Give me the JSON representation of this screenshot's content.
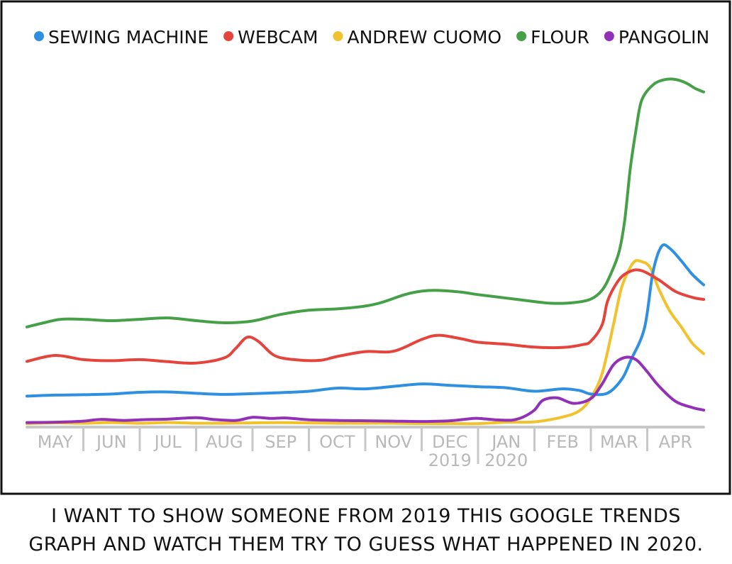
{
  "caption": {
    "line1": "I WANT TO SHOW SOMEONE FROM 2019 THIS GOOGLE TRENDS",
    "line2": "GRAPH AND WATCH THEM TRY TO GUESS WHAT HAPPENED IN 2020."
  },
  "chart_data": {
    "type": "line",
    "title": "",
    "xlabel": "",
    "ylabel": "",
    "x_months": [
      "MAY",
      "JUN",
      "JUL",
      "AUG",
      "SEP",
      "OCT",
      "NOV",
      "DEC",
      "JAN",
      "FEB",
      "MAR",
      "APR"
    ],
    "year_labels": [
      {
        "month": "DEC",
        "text": "2019"
      },
      {
        "month": "JAN",
        "text": "2020"
      }
    ],
    "xlim": [
      0,
      12
    ],
    "ylim": [
      0,
      100
    ],
    "grid": false,
    "legend_position": "top",
    "series": [
      {
        "name": "SEWING MACHINE",
        "color": "#2f8fe0",
        "points": [
          [
            0,
            8.5
          ],
          [
            0.5,
            8.8
          ],
          [
            1,
            8.9
          ],
          [
            1.5,
            9.1
          ],
          [
            2,
            9.6
          ],
          [
            2.5,
            9.7
          ],
          [
            3,
            9.3
          ],
          [
            3.5,
            9.0
          ],
          [
            4,
            9.2
          ],
          [
            4.5,
            9.5
          ],
          [
            5,
            9.9
          ],
          [
            5.5,
            10.8
          ],
          [
            6,
            10.6
          ],
          [
            6.5,
            11.3
          ],
          [
            7,
            12.0
          ],
          [
            7.5,
            11.6
          ],
          [
            8,
            11.2
          ],
          [
            8.5,
            10.9
          ],
          [
            9,
            9.9
          ],
          [
            9.5,
            10.6
          ],
          [
            9.8,
            10.1
          ],
          [
            10,
            9.1
          ],
          [
            10.3,
            9.4
          ],
          [
            10.55,
            13.4
          ],
          [
            10.7,
            18.5
          ],
          [
            10.95,
            28.0
          ],
          [
            11.1,
            44.0
          ],
          [
            11.25,
            51.5
          ],
          [
            11.4,
            51.0
          ],
          [
            11.6,
            47.5
          ],
          [
            11.8,
            43.5
          ],
          [
            12,
            40.5
          ]
        ]
      },
      {
        "name": "WEBCAM",
        "color": "#e5443c",
        "points": [
          [
            0,
            18.5
          ],
          [
            0.5,
            20.2
          ],
          [
            1,
            19.0
          ],
          [
            1.5,
            18.7
          ],
          [
            2,
            19.0
          ],
          [
            2.5,
            18.4
          ],
          [
            3,
            18.0
          ],
          [
            3.5,
            19.5
          ],
          [
            3.7,
            22.2
          ],
          [
            3.9,
            25.4
          ],
          [
            4.1,
            24.3
          ],
          [
            4.4,
            20.1
          ],
          [
            4.8,
            18.9
          ],
          [
            5.2,
            18.8
          ],
          [
            5.5,
            19.9
          ],
          [
            6,
            21.3
          ],
          [
            6.5,
            21.4
          ],
          [
            7,
            24.8
          ],
          [
            7.3,
            26.0
          ],
          [
            7.7,
            25.0
          ],
          [
            8,
            24.0
          ],
          [
            8.5,
            23.4
          ],
          [
            9,
            22.6
          ],
          [
            9.5,
            22.5
          ],
          [
            9.85,
            23.3
          ],
          [
            10,
            24.3
          ],
          [
            10.2,
            29.0
          ],
          [
            10.3,
            36.0
          ],
          [
            10.5,
            42.0
          ],
          [
            10.7,
            44.4
          ],
          [
            10.9,
            44.6
          ],
          [
            11.2,
            42.0
          ],
          [
            11.5,
            38.6
          ],
          [
            11.8,
            36.9
          ],
          [
            12,
            36.3
          ]
        ]
      },
      {
        "name": "ANDREW CUOMO",
        "color": "#f2c22c",
        "points": [
          [
            0,
            0.6
          ],
          [
            0.5,
            0.8
          ],
          [
            1,
            0.7
          ],
          [
            1.5,
            0.9
          ],
          [
            2,
            0.7
          ],
          [
            2.5,
            0.9
          ],
          [
            3,
            0.7
          ],
          [
            3.5,
            0.7
          ],
          [
            4,
            0.8
          ],
          [
            4.5,
            0.9
          ],
          [
            5,
            0.8
          ],
          [
            5.5,
            0.7
          ],
          [
            6,
            0.7
          ],
          [
            6.5,
            0.7
          ],
          [
            7,
            0.6
          ],
          [
            7.5,
            0.6
          ],
          [
            8,
            0.6
          ],
          [
            8.5,
            1.0
          ],
          [
            9,
            1.1
          ],
          [
            9.5,
            2.5
          ],
          [
            9.8,
            4.3
          ],
          [
            10,
            8.0
          ],
          [
            10.2,
            15.0
          ],
          [
            10.4,
            29.0
          ],
          [
            10.55,
            40.0
          ],
          [
            10.75,
            46.8
          ],
          [
            10.9,
            47.2
          ],
          [
            11.05,
            45.5
          ],
          [
            11.2,
            39.5
          ],
          [
            11.4,
            33.0
          ],
          [
            11.6,
            28.5
          ],
          [
            11.8,
            23.7
          ],
          [
            12,
            20.7
          ]
        ]
      },
      {
        "name": "FLOUR",
        "color": "#45a048",
        "points": [
          [
            0,
            28.4
          ],
          [
            0.3,
            29.6
          ],
          [
            0.6,
            30.6
          ],
          [
            1,
            30.6
          ],
          [
            1.5,
            30.2
          ],
          [
            2,
            30.6
          ],
          [
            2.5,
            31.0
          ],
          [
            3,
            30.2
          ],
          [
            3.5,
            29.6
          ],
          [
            4,
            30.1
          ],
          [
            4.5,
            32.0
          ],
          [
            5,
            33.2
          ],
          [
            5.5,
            33.6
          ],
          [
            6,
            34.4
          ],
          [
            6.3,
            35.5
          ],
          [
            6.7,
            37.7
          ],
          [
            7,
            38.7
          ],
          [
            7.3,
            38.9
          ],
          [
            7.7,
            38.4
          ],
          [
            8,
            37.7
          ],
          [
            8.5,
            36.7
          ],
          [
            9,
            35.7
          ],
          [
            9.3,
            35.2
          ],
          [
            9.7,
            35.4
          ],
          [
            10,
            36.4
          ],
          [
            10.2,
            39.0
          ],
          [
            10.35,
            43.5
          ],
          [
            10.5,
            50.0
          ],
          [
            10.6,
            59.0
          ],
          [
            10.7,
            74.0
          ],
          [
            10.8,
            85.0
          ],
          [
            10.9,
            93.5
          ],
          [
            11.1,
            98.0
          ],
          [
            11.3,
            99.5
          ],
          [
            11.5,
            99.6
          ],
          [
            11.7,
            98.5
          ],
          [
            11.85,
            97.0
          ],
          [
            12,
            96.0
          ]
        ]
      },
      {
        "name": "PANGOLIN",
        "color": "#9231b8",
        "points": [
          [
            0,
            0.9
          ],
          [
            0.5,
            1.0
          ],
          [
            1,
            1.3
          ],
          [
            1.3,
            1.8
          ],
          [
            1.7,
            1.5
          ],
          [
            2,
            1.7
          ],
          [
            2.5,
            1.9
          ],
          [
            3,
            2.3
          ],
          [
            3.3,
            1.8
          ],
          [
            3.7,
            1.5
          ],
          [
            4,
            2.4
          ],
          [
            4.3,
            2.1
          ],
          [
            4.6,
            2.2
          ],
          [
            5,
            1.7
          ],
          [
            5.5,
            1.5
          ],
          [
            6,
            1.4
          ],
          [
            6.5,
            1.3
          ],
          [
            7,
            1.2
          ],
          [
            7.5,
            1.4
          ],
          [
            7.8,
            1.9
          ],
          [
            8,
            2.1
          ],
          [
            8.3,
            1.7
          ],
          [
            8.6,
            1.6
          ],
          [
            8.8,
            2.5
          ],
          [
            9,
            4.5
          ],
          [
            9.15,
            7.3
          ],
          [
            9.4,
            8.0
          ],
          [
            9.7,
            6.4
          ],
          [
            10,
            7.8
          ],
          [
            10.2,
            12.0
          ],
          [
            10.4,
            17.5
          ],
          [
            10.6,
            19.6
          ],
          [
            10.8,
            19.0
          ],
          [
            11,
            15.5
          ],
          [
            11.2,
            11.5
          ],
          [
            11.5,
            7.0
          ],
          [
            11.8,
            5.2
          ],
          [
            12,
            4.5
          ]
        ]
      }
    ]
  }
}
